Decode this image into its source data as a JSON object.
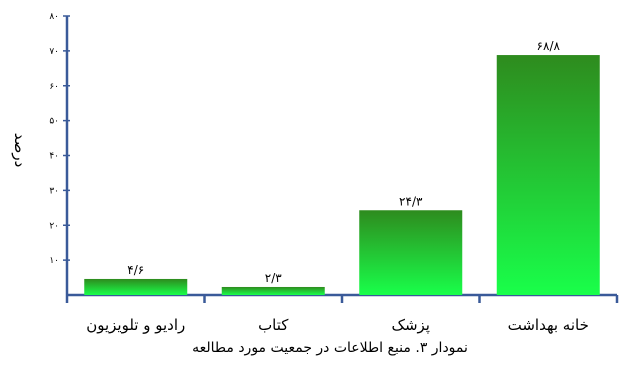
{
  "chart_data": {
    "type": "bar",
    "categories": [
      "خانه بهداشت",
      "پزشک",
      "کتاب",
      "رادیو و تلویزیون"
    ],
    "values": [
      68.8,
      24.3,
      2.3,
      4.6
    ],
    "value_labels": [
      "۶۸/۸",
      "۲۴/۳",
      "۲/۳",
      "۴/۶"
    ],
    "ylabel": "درصد",
    "ylim": [
      0,
      80
    ],
    "yticks": [
      10,
      20,
      30,
      40,
      50,
      60,
      70,
      80
    ],
    "ytick_labels": [
      "۱۰",
      "۲۰",
      "۳۰",
      "۴۰",
      "۵۰",
      "۶۰",
      "۷۰",
      "۸۰"
    ],
    "caption": "نمودار ۳. منبع اطلاعات در جمعیت مورد مطالعه",
    "grid": false,
    "legend": "none",
    "colors": {
      "bar_top": "#2e8b1e",
      "bar_bottom": "#19ff4a",
      "axis": "#3a5a99"
    }
  }
}
